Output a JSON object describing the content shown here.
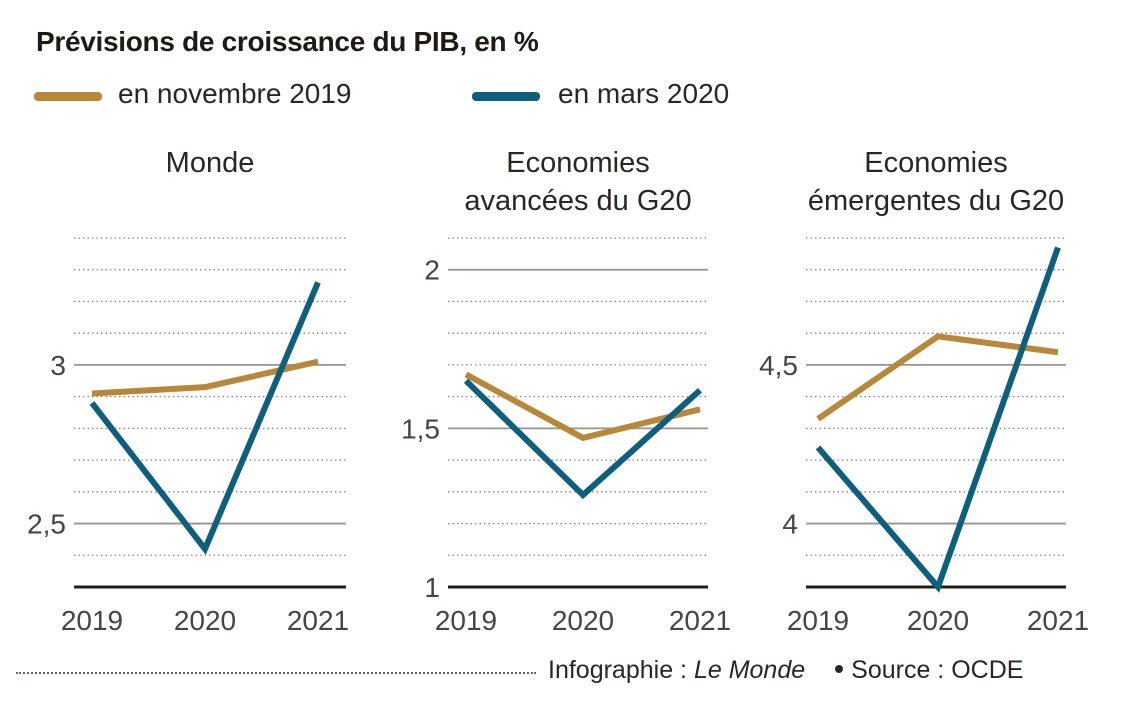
{
  "title": "Prévisions de croissance du PIB, en %",
  "legend": [
    {
      "label": "en novembre 2019",
      "color": "#b8883a"
    },
    {
      "label": "en mars 2020",
      "color": "#0e5f7d"
    }
  ],
  "footer": {
    "credit_prefix": "Infographie : ",
    "credit_name": "Le Monde",
    "source": "Source : OCDE"
  },
  "chart_data": [
    {
      "type": "line",
      "title": "Monde",
      "categories": [
        "2019",
        "2020",
        "2021"
      ],
      "ylim": [
        2.3,
        3.4
      ],
      "yticks": [
        2.5,
        3
      ],
      "ytick_labels": [
        "2,5",
        "3"
      ],
      "minor_step": 0.1,
      "series": [
        {
          "name": "en novembre 2019",
          "values": [
            2.91,
            2.93,
            3.01
          ]
        },
        {
          "name": "en mars 2020",
          "values": [
            2.88,
            2.42,
            3.26
          ]
        }
      ]
    },
    {
      "type": "line",
      "title": "Economies avancées du G20",
      "categories": [
        "2019",
        "2020",
        "2021"
      ],
      "ylim": [
        1.0,
        2.1
      ],
      "yticks": [
        1,
        1.5,
        2
      ],
      "ytick_labels": [
        "1",
        "1,5",
        "2"
      ],
      "minor_step": 0.1,
      "series": [
        {
          "name": "en novembre 2019",
          "values": [
            1.67,
            1.47,
            1.56
          ]
        },
        {
          "name": "en mars 2020",
          "values": [
            1.65,
            1.29,
            1.62
          ]
        }
      ]
    },
    {
      "type": "line",
      "title": "Economies émergentes du G20",
      "categories": [
        "2019",
        "2020",
        "2021"
      ],
      "ylim": [
        3.8,
        4.9
      ],
      "yticks": [
        4,
        4.5
      ],
      "ytick_labels": [
        "4",
        "4,5"
      ],
      "minor_step": 0.1,
      "series": [
        {
          "name": "en novembre 2019",
          "values": [
            4.33,
            4.59,
            4.54
          ]
        },
        {
          "name": "en mars 2020",
          "values": [
            4.24,
            3.8,
            4.87
          ]
        }
      ]
    }
  ]
}
